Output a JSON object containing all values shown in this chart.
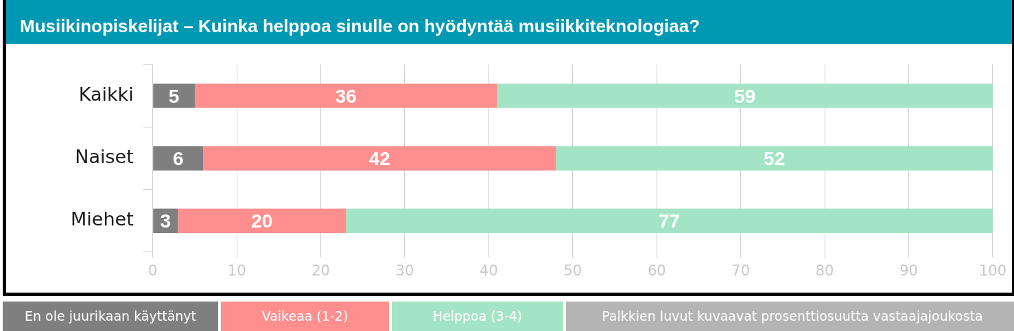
{
  "chart_data": {
    "type": "bar",
    "orientation": "horizontal",
    "stacked": true,
    "title": "Musiikinopiskelijat – Kuinka helppoa sinulle on hyödyntää musiikkiteknologiaa?",
    "categories": [
      "Kaikki",
      "Naiset",
      "Miehet"
    ],
    "series": [
      {
        "name": "En ole juurikaan käyttänyt",
        "color": "#7f7f7f",
        "values": [
          5,
          6,
          3
        ]
      },
      {
        "name": "Vaikeaa (1-2)",
        "color": "#ff8f8f",
        "values": [
          36,
          42,
          20
        ]
      },
      {
        "name": "Helppoa (3-4)",
        "color": "#a3e4c4",
        "values": [
          59,
          52,
          77
        ]
      }
    ],
    "xlim": [
      0,
      100
    ],
    "xticks": [
      0,
      10,
      20,
      30,
      40,
      50,
      60,
      70,
      80,
      90,
      100
    ],
    "grid": "x",
    "legend": "bottom",
    "data_labels": true,
    "annotations": [
      "Palkkien luvut kuvaavat prosenttiosuutta vastaajajoukosta"
    ]
  }
}
